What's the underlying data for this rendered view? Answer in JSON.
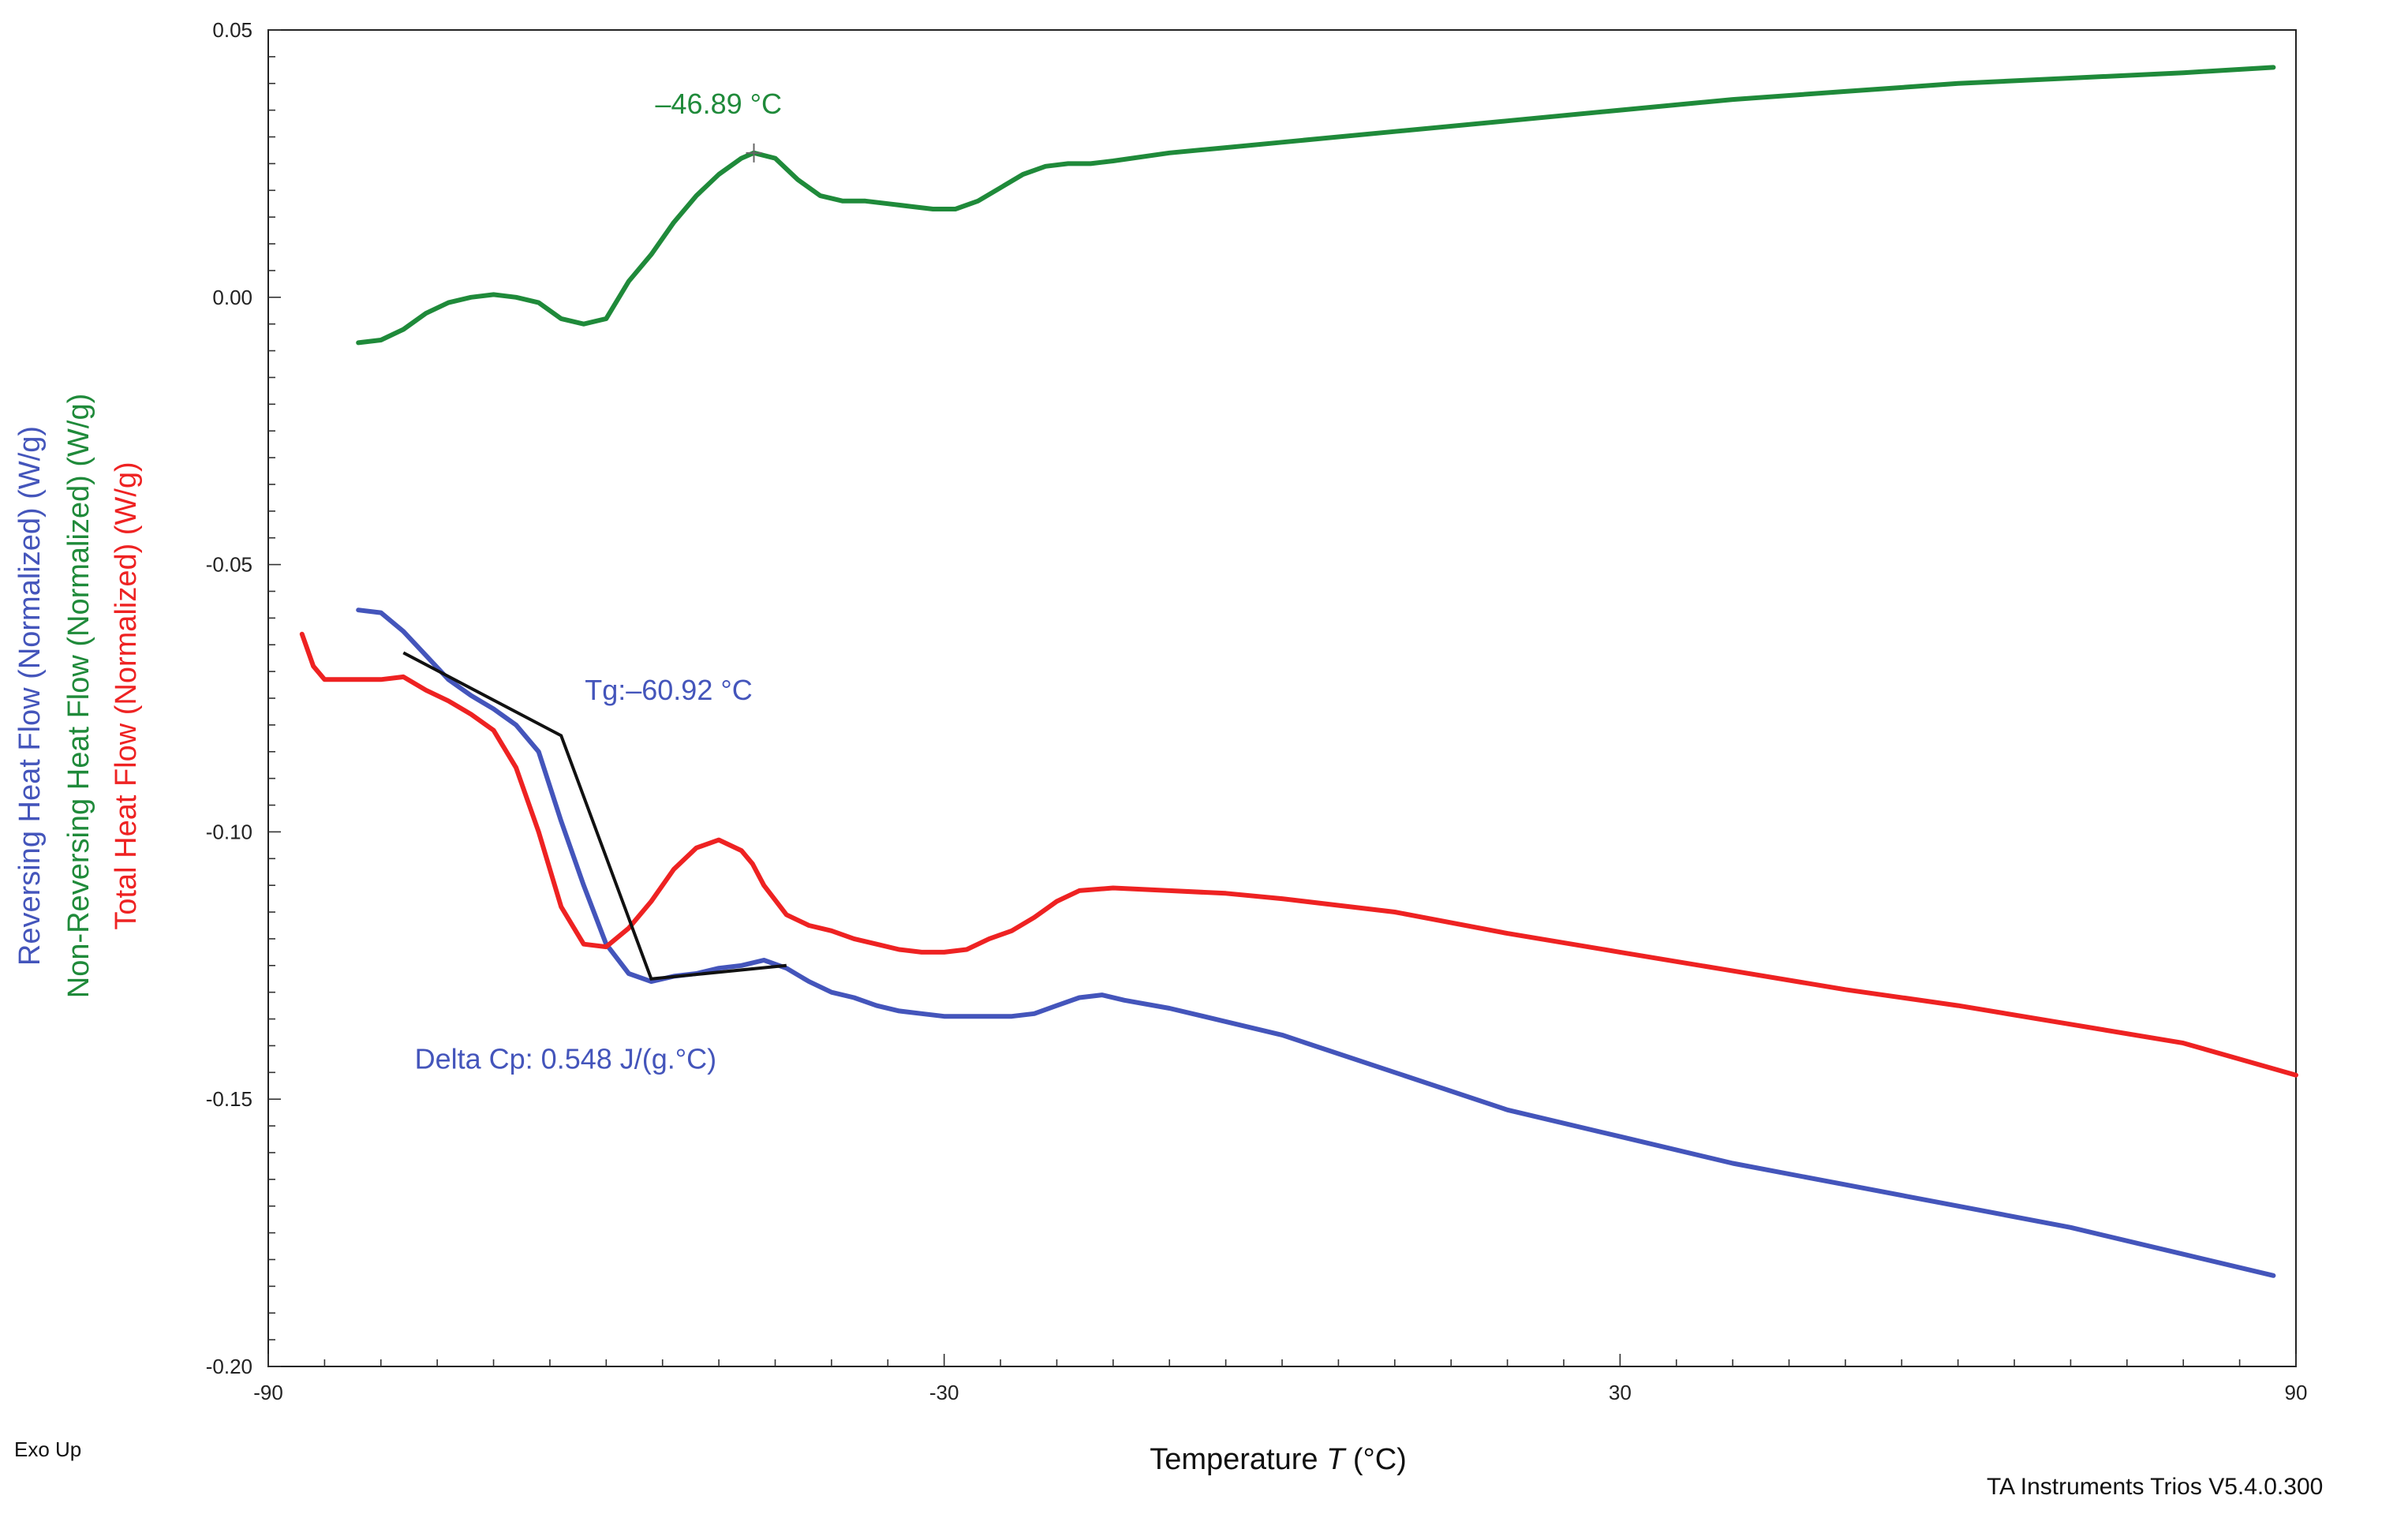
{
  "chart_data": {
    "type": "line",
    "xlabel": "Temperature",
    "xlabel_symbol": "T",
    "xlabel_unit": "(°C)",
    "xlim": [
      -90,
      90
    ],
    "ylim": [
      -0.2,
      0.05
    ],
    "x_ticks": [
      -90,
      -30,
      30,
      90
    ],
    "x_tick_labels": [
      "-90",
      "-30",
      "30",
      "90"
    ],
    "y_ticks": [
      0.05,
      0.0,
      -0.05,
      -0.1,
      -0.15,
      -0.2
    ],
    "y_tick_labels": [
      "0.05",
      "0.00",
      "-0.05",
      "-0.10",
      "-0.15",
      "-0.20"
    ],
    "ylabels": [
      {
        "text": "Reversing Heat Flow (Normalized)  (W/g)",
        "color": "#4455bb"
      },
      {
        "text": "Non-Reversing Heat Flow (Normalized)  (W/g)",
        "color": "#1f8a3a"
      },
      {
        "text": "Total Heat Flow (Normalized)  (W/g)",
        "color": "#ee2222"
      }
    ],
    "grid": false,
    "series": [
      {
        "name": "Non-Reversing Heat Flow (Normalized)",
        "color": "#1f8a3a",
        "x": [
          -82,
          -80,
          -78,
          -76,
          -74,
          -72,
          -70,
          -68,
          -66,
          -64,
          -62,
          -60,
          -58,
          -56,
          -54,
          -52,
          -50,
          -48,
          -46.89,
          -45,
          -43,
          -41,
          -39,
          -37,
          -35,
          -33,
          -31,
          -29,
          -27,
          -25,
          -23,
          -21,
          -19,
          -17,
          -15,
          -10,
          -5,
          0,
          10,
          20,
          30,
          40,
          50,
          60,
          70,
          80,
          88
        ],
        "values": [
          -0.0085,
          -0.008,
          -0.006,
          -0.003,
          -0.001,
          0.0,
          0.0005,
          0.0,
          -0.001,
          -0.004,
          -0.005,
          -0.004,
          0.003,
          0.008,
          0.014,
          0.019,
          0.023,
          0.026,
          0.027,
          0.026,
          0.022,
          0.019,
          0.018,
          0.018,
          0.0175,
          0.017,
          0.0165,
          0.0165,
          0.018,
          0.0205,
          0.023,
          0.0245,
          0.025,
          0.025,
          0.0255,
          0.027,
          0.028,
          0.029,
          0.031,
          0.033,
          0.035,
          0.037,
          0.0385,
          0.04,
          0.041,
          0.042,
          0.043
        ]
      },
      {
        "name": "Reversing Heat Flow (Normalized)",
        "color": "#4455bb",
        "x": [
          -82,
          -80,
          -78,
          -76,
          -74,
          -72,
          -70,
          -68,
          -66,
          -64,
          -62,
          -60,
          -58,
          -56,
          -54,
          -52,
          -50,
          -48,
          -46,
          -44,
          -42,
          -40,
          -38,
          -36,
          -34,
          -32,
          -30,
          -28,
          -26,
          -24,
          -22,
          -20,
          -18,
          -16,
          -14,
          -10,
          -5,
          0,
          10,
          20,
          30,
          40,
          50,
          60,
          70,
          80,
          88
        ],
        "values": [
          -0.0585,
          -0.059,
          -0.0625,
          -0.067,
          -0.0715,
          -0.0745,
          -0.077,
          -0.08,
          -0.085,
          -0.098,
          -0.11,
          -0.121,
          -0.1265,
          -0.128,
          -0.127,
          -0.1265,
          -0.1255,
          -0.125,
          -0.124,
          -0.1255,
          -0.128,
          -0.13,
          -0.131,
          -0.1325,
          -0.1335,
          -0.134,
          -0.1345,
          -0.1345,
          -0.1345,
          -0.1345,
          -0.134,
          -0.1325,
          -0.131,
          -0.1305,
          -0.1315,
          -0.133,
          -0.1355,
          -0.138,
          -0.145,
          -0.152,
          -0.157,
          -0.162,
          -0.166,
          -0.17,
          -0.174,
          -0.179,
          -0.183
        ]
      },
      {
        "name": "Total Heat Flow (Normalized)",
        "color": "#ee2222",
        "x": [
          -87,
          -86,
          -85,
          -84,
          -82,
          -80,
          -78,
          -76,
          -74,
          -72,
          -70,
          -68,
          -66,
          -64,
          -62,
          -60,
          -58,
          -56,
          -54,
          -52,
          -50,
          -48,
          -47,
          -46,
          -44,
          -42,
          -40,
          -38,
          -36,
          -34,
          -32,
          -30,
          -28,
          -26,
          -24,
          -22,
          -20,
          -18,
          -15,
          -10,
          -5,
          0,
          10,
          20,
          30,
          40,
          50,
          60,
          70,
          80,
          90
        ],
        "values": [
          -0.063,
          -0.069,
          -0.0715,
          -0.0715,
          -0.0715,
          -0.0715,
          -0.071,
          -0.0735,
          -0.0755,
          -0.078,
          -0.081,
          -0.088,
          -0.1,
          -0.114,
          -0.121,
          -0.1215,
          -0.118,
          -0.113,
          -0.107,
          -0.103,
          -0.1015,
          -0.1035,
          -0.106,
          -0.11,
          -0.1155,
          -0.1175,
          -0.1185,
          -0.12,
          -0.121,
          -0.122,
          -0.1225,
          -0.1225,
          -0.122,
          -0.12,
          -0.1185,
          -0.116,
          -0.113,
          -0.111,
          -0.1105,
          -0.111,
          -0.1115,
          -0.1125,
          -0.115,
          -0.119,
          -0.1225,
          -0.126,
          -0.1295,
          -0.1325,
          -0.136,
          -0.1395,
          -0.1455
        ]
      }
    ],
    "tangent_lines": [
      {
        "name": "onset-tangent",
        "color": "#111111",
        "x": [
          -78,
          -64,
          -56,
          -44
        ],
        "values": [
          -0.0665,
          -0.082,
          -0.1275,
          -0.125
        ]
      }
    ],
    "annotations": [
      {
        "id": "peak",
        "text": "–46.89 °C",
        "x": -46.89,
        "y": 0.027,
        "color": "#1f8a3a"
      },
      {
        "id": "tg",
        "text": "Tg:–60.92 °C",
        "color": "#4455bb"
      },
      {
        "id": "delta-cp",
        "text": "Delta Cp: 0.548 J/(g.°C)",
        "color": "#4455bb"
      }
    ]
  },
  "footer": {
    "exo_up": "Exo Up",
    "software": "TA Instruments Trios V5.4.0.300"
  }
}
